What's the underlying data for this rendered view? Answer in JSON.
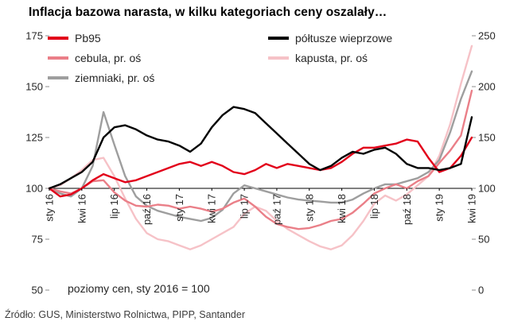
{
  "chart_data": {
    "type": "line",
    "title": "Inflacja bazowa narasta, w kilku kategoriach ceny oszalały…",
    "note": "poziomy cen, sty 2016 = 100",
    "source": "Źródło: GUS, Ministerstwo Rolnictwa, PIPP, Santander",
    "legend_position": "top",
    "grid": false,
    "categories": [
      "sty 16",
      "lut 16",
      "mar 16",
      "kwi 16",
      "maj 16",
      "cze 16",
      "lip 16",
      "sie 16",
      "wrz 16",
      "paź 16",
      "lis 16",
      "gru 16",
      "sty 17",
      "lut 17",
      "mar 17",
      "kwi 17",
      "maj 17",
      "cze 17",
      "lip 17",
      "sie 17",
      "wrz 17",
      "paź 17",
      "lis 17",
      "gru 17",
      "sty 18",
      "lut 18",
      "mar 18",
      "kwi 18",
      "maj 18",
      "cze 18",
      "lip 18",
      "sie 18",
      "wrz 18",
      "paź 18",
      "lis 18",
      "gru 18",
      "sty 19",
      "lut 19",
      "mar 19",
      "kwi 19"
    ],
    "x_tick_every": 3,
    "axes": {
      "left": {
        "ylim": [
          50,
          175
        ],
        "ticks": [
          175,
          150,
          125,
          100,
          75,
          50
        ]
      },
      "right": {
        "ylim": [
          0,
          250
        ],
        "ticks": [
          250,
          200,
          150,
          100,
          50,
          0
        ]
      },
      "baseline_left_value": 100
    },
    "series": [
      {
        "name": "Pb95",
        "axis": "left",
        "color": "#e2001a",
        "values": [
          100,
          96,
          97,
          100,
          104,
          107,
          105,
          103,
          104,
          106,
          108,
          110,
          112,
          113,
          111,
          113,
          111,
          108,
          107,
          109,
          112,
          110,
          112,
          111,
          110,
          109,
          110,
          113,
          117,
          120,
          120,
          121,
          122,
          124,
          123,
          115,
          108,
          110,
          116,
          125
        ]
      },
      {
        "name": "półtusze wieprzowe",
        "axis": "left",
        "color": "#000000",
        "values": [
          100,
          102,
          105,
          108,
          113,
          125,
          130,
          131,
          129,
          126,
          124,
          123,
          121,
          118,
          122,
          130,
          136,
          140,
          139,
          137,
          132,
          127,
          122,
          117,
          112,
          109,
          111,
          115,
          118,
          117,
          119,
          120,
          117,
          112,
          110,
          110,
          109,
          110,
          112,
          135
        ]
      },
      {
        "name": "cebula, pr. oś",
        "axis": "right",
        "color": "#ea7f88",
        "values": [
          100,
          97,
          95,
          100,
          107,
          108,
          96,
          88,
          83,
          82,
          84,
          83,
          80,
          82,
          80,
          77,
          80,
          86,
          90,
          82,
          72,
          65,
          62,
          60,
          61,
          64,
          68,
          70,
          76,
          85,
          95,
          100,
          104,
          100,
          107,
          112,
          125,
          137,
          152,
          196
        ]
      },
      {
        "name": "kapusta, pr. oś",
        "axis": "right",
        "color": "#f6c2c7",
        "values": [
          100,
          103,
          110,
          118,
          128,
          130,
          112,
          90,
          70,
          56,
          50,
          48,
          44,
          40,
          44,
          50,
          56,
          62,
          75,
          82,
          78,
          68,
          60,
          54,
          48,
          43,
          40,
          44,
          54,
          68,
          85,
          93,
          88,
          94,
          103,
          112,
          132,
          163,
          203,
          240
        ]
      },
      {
        "name": "ziemniaki, pr. oś",
        "axis": "right",
        "color": "#9e9e9e",
        "values": [
          100,
          95,
          92,
          100,
          122,
          175,
          143,
          112,
          92,
          83,
          78,
          75,
          72,
          70,
          68,
          71,
          79,
          95,
          103,
          100,
          97,
          94,
          91,
          89,
          88,
          87,
          86,
          86,
          89,
          95,
          100,
          104,
          104,
          107,
          110,
          116,
          128,
          155,
          188,
          215
        ]
      }
    ],
    "draw_order": [
      3,
      4,
      2,
      0,
      1
    ]
  }
}
